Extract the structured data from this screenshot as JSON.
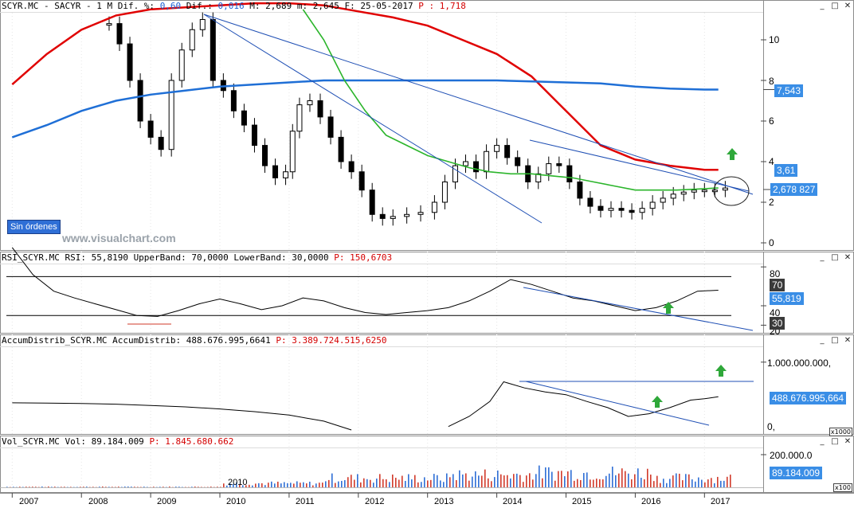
{
  "window_buttons": {
    "minimize": "_",
    "maximize": "□",
    "close": "✕"
  },
  "panels": {
    "price": {
      "header_parts": [
        {
          "text": "SCYR.MC - SACYR -  1 M Dif. %: ",
          "color": "normal"
        },
        {
          "text": "0,60",
          "color": "blue"
        },
        {
          "text": " Dif.: ",
          "color": "normal"
        },
        {
          "text": "0,016",
          "color": "blue"
        },
        {
          "text": " M: 2,689 m: 2,645 F: 25-05-2017 ",
          "color": "normal"
        },
        {
          "text": "P : 1,718",
          "color": "red"
        }
      ],
      "y_ticks": [
        "10",
        "8",
        "6",
        "4",
        "2",
        "0"
      ],
      "tags": {
        "ma_long": "7,543",
        "ma_mid": "3,61",
        "price": "2,678",
        "price_suffix": "827"
      },
      "no_orders": "Sin órdenes",
      "watermark": "www.visualchart.com"
    },
    "rsi": {
      "header_parts": [
        {
          "text": "RSI_SCYR.MC RSI: 55,8190 UpperBand: 70,0000 LowerBand: 30,0000 ",
          "color": "normal"
        },
        {
          "text": "P: 150,6703",
          "color": "red"
        }
      ],
      "y_ticks": [
        "80",
        "40",
        "20"
      ],
      "tags": {
        "upper": "70",
        "value": "55,819",
        "lower": "30"
      }
    },
    "ad": {
      "header_parts": [
        {
          "text": "AccumDistrib_SCYR.MC AccumDistrib: 488.676.995,6641 ",
          "color": "normal"
        },
        {
          "text": "P: 3.389.724.515,6250",
          "color": "red"
        }
      ],
      "y_ticks": [
        "1.000.000.000,",
        "0,"
      ],
      "tags": {
        "value": "488.676.995,664"
      },
      "multiplier": "x1000"
    },
    "vol": {
      "header_parts": [
        {
          "text": "Vol_SCYR.MC Vol: 89.184.009 ",
          "color": "normal"
        },
        {
          "text": "P: 1.845.680.662",
          "color": "red"
        }
      ],
      "y_ticks": [
        "200.000.0"
      ],
      "tags": {
        "value": "89.184.009"
      },
      "multiplier": "x100",
      "overlay_label": "2010"
    }
  },
  "x_axis_years": [
    "2007",
    "2008",
    "2009",
    "2010",
    "2011",
    "2012",
    "2013",
    "2014",
    "2015",
    "2016",
    "2017"
  ],
  "colors": {
    "ma_fast": "#2bb52b",
    "ma_mid": "#e00000",
    "ma_long": "#1f6fd6",
    "trend": "#1f4fb4",
    "arrow": "#2fa83a",
    "vol_up": "#2f6fd6",
    "vol_down": "#d13a2a"
  },
  "chart_data": [
    {
      "type": "candlestick",
      "series": [
        {
          "name": "price",
          "x": [
            2008.4,
            2008.55,
            2008.7,
            2008.85,
            2009.0,
            2009.15,
            2009.3,
            2009.45,
            2009.6,
            2009.75,
            2009.9,
            2010.05,
            2010.2,
            2010.35,
            2010.5,
            2010.65,
            2010.8,
            2010.95,
            2011.05,
            2011.15,
            2011.3,
            2011.45,
            2011.6,
            2011.75,
            2011.9,
            2012.05,
            2012.2,
            2012.35,
            2012.5,
            2012.7,
            2012.9,
            2013.1,
            2013.25,
            2013.4,
            2013.55,
            2013.7,
            2013.85,
            2014.0,
            2014.15,
            2014.3,
            2014.45,
            2014.6,
            2014.75,
            2014.9,
            2015.05,
            2015.2,
            2015.35,
            2015.5,
            2015.65,
            2015.8,
            2015.95,
            2016.1,
            2016.25,
            2016.4,
            2016.55,
            2016.7,
            2016.85,
            2017.0,
            2017.15,
            2017.3
          ],
          "y": [
            10.8,
            9.8,
            8.0,
            6.0,
            5.2,
            4.6,
            8.0,
            9.5,
            10.5,
            11.0,
            8.0,
            7.5,
            6.5,
            5.8,
            4.8,
            3.8,
            3.2,
            3.5,
            5.5,
            6.8,
            7.0,
            6.2,
            5.2,
            4.0,
            3.5,
            2.6,
            1.4,
            1.2,
            1.3,
            1.4,
            1.5,
            2.0,
            3.0,
            3.8,
            4.0,
            3.5,
            4.5,
            4.8,
            4.2,
            3.8,
            3.0,
            3.4,
            3.9,
            3.8,
            3.0,
            2.2,
            1.8,
            1.6,
            1.7,
            1.6,
            1.5,
            1.7,
            2.0,
            2.2,
            2.4,
            2.5,
            2.6,
            2.6,
            2.6,
            2.7
          ]
        },
        {
          "name": "ma_fast",
          "x": [
            2011.2,
            2011.5,
            2011.8,
            2012.1,
            2012.4,
            2012.7,
            2013.0,
            2013.3,
            2013.6,
            2013.9,
            2014.2,
            2014.5,
            2014.8,
            2015.1,
            2015.4,
            2015.7,
            2016.0,
            2016.3,
            2016.6,
            2016.9,
            2017.2
          ],
          "y": [
            11.5,
            10.0,
            8.0,
            6.5,
            5.3,
            4.8,
            4.3,
            4.0,
            3.7,
            3.5,
            3.4,
            3.4,
            3.3,
            3.2,
            3.0,
            2.8,
            2.6,
            2.6,
            2.6,
            2.65,
            2.7
          ]
        },
        {
          "name": "ma_mid",
          "x": [
            2007.0,
            2007.5,
            2008.0,
            2008.5,
            2009.0,
            2009.5,
            2010.0,
            2010.5,
            2011.0,
            2011.5,
            2012.0,
            2012.5,
            2013.0,
            2013.5,
            2014.0,
            2014.5,
            2015.0,
            2015.5,
            2016.0,
            2016.5,
            2017.0,
            2017.2
          ],
          "y": [
            7.8,
            9.3,
            10.5,
            11.2,
            11.5,
            11.6,
            11.7,
            11.8,
            11.8,
            11.7,
            11.4,
            11.1,
            10.7,
            10.0,
            9.3,
            8.2,
            6.5,
            4.8,
            4.1,
            3.8,
            3.6,
            3.6
          ]
        },
        {
          "name": "ma_long",
          "x": [
            2007.0,
            2007.5,
            2008.0,
            2008.5,
            2009.0,
            2009.5,
            2010.0,
            2010.5,
            2011.0,
            2011.5,
            2012.0,
            2012.5,
            2013.0,
            2013.5,
            2014.0,
            2014.5,
            2015.0,
            2015.5,
            2016.0,
            2016.5,
            2017.0,
            2017.2
          ],
          "y": [
            5.2,
            5.8,
            6.5,
            7.0,
            7.3,
            7.5,
            7.7,
            7.8,
            7.9,
            8.0,
            8.0,
            8.0,
            8.0,
            8.0,
            8.0,
            7.95,
            7.9,
            7.85,
            7.7,
            7.6,
            7.55,
            7.55
          ]
        }
      ],
      "ylim": [
        -0.3,
        11.5
      ]
    },
    {
      "type": "line",
      "series": [
        {
          "name": "rsi",
          "x": [
            2007.0,
            2007.3,
            2007.6,
            2007.9,
            2008.2,
            2008.5,
            2008.8,
            2009.1,
            2009.4,
            2009.7,
            2010.0,
            2010.3,
            2010.6,
            2010.9,
            2011.2,
            2011.5,
            2011.8,
            2012.1,
            2012.4,
            2012.7,
            2013.0,
            2013.3,
            2013.6,
            2013.9,
            2014.2,
            2014.5,
            2014.8,
            2015.1,
            2015.4,
            2015.7,
            2016.0,
            2016.3,
            2016.6,
            2016.9,
            2017.2
          ],
          "y": [
            100,
            72,
            55,
            48,
            42,
            36,
            30,
            29,
            35,
            42,
            47,
            42,
            36,
            40,
            48,
            45,
            38,
            33,
            31,
            33,
            35,
            38,
            45,
            55,
            67,
            62,
            55,
            48,
            45,
            40,
            35,
            38,
            45,
            55,
            56
          ]
        }
      ],
      "upper_band": 70,
      "lower_band": 30,
      "ylim": [
        15,
        90
      ]
    },
    {
      "type": "line",
      "series": [
        {
          "name": "accum_distrib",
          "x": [
            2007.0,
            2007.5,
            2008.0,
            2008.5,
            2009.0,
            2009.5,
            2010.0,
            2010.5,
            2011.0,
            2011.5,
            2011.9,
            2012.3,
            2013.0,
            2013.3,
            2013.6,
            2013.9,
            2014.1,
            2014.4,
            2014.7,
            2015.0,
            2015.3,
            2015.6,
            2015.9,
            2016.2,
            2016.5,
            2016.8,
            2017.0,
            2017.2
          ],
          "y": [
            400,
            395,
            390,
            380,
            360,
            340,
            310,
            270,
            220,
            130,
            0,
            -300,
            -300,
            50,
            200,
            420,
            710,
            620,
            560,
            520,
            420,
            330,
            200,
            240,
            330,
            440,
            460,
            490
          ]
        }
      ],
      "ylim": [
        -60,
        1250
      ]
    },
    {
      "type": "bar",
      "series": [
        {
          "name": "volume"
        }
      ],
      "ylim": [
        0,
        240
      ]
    }
  ]
}
